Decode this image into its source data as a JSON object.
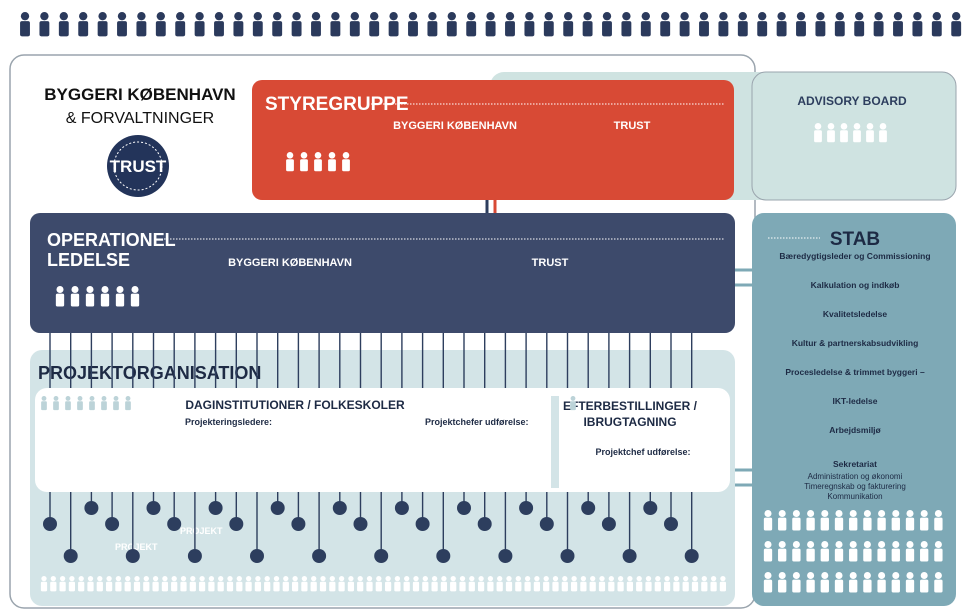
{
  "logo": {
    "line1": "BYGGERI KØBENHAVN",
    "line2": "& FORVALTNINGER",
    "badge": "TRUST"
  },
  "styregruppe": {
    "title": "STYREGRUPPE",
    "members": [
      "BYGGERI KØBENHAVN",
      "TRUST"
    ]
  },
  "advisory_board": {
    "title": "ADVISORY BOARD"
  },
  "operationel_ledelse": {
    "title": [
      "OPERATIONEL",
      "LEDELSE"
    ],
    "members": [
      "BYGGERI KØBENHAVN",
      "TRUST"
    ]
  },
  "stab": {
    "title": "STAB",
    "items": [
      "Bæredygtigsleder og Commissioning",
      "Kalkulation og indkøb",
      "Kvalitetsledelse",
      "Kultur & partnerskabsudvikling",
      "Procesledelse & trimmet byggeri –",
      "IKT-ledelse",
      "Arbejdsmiljø"
    ],
    "sekretariat": {
      "title": "Sekretariat",
      "items": [
        "Administration og økonomi",
        "Timeregnskab og fakturering",
        "Kommunikation"
      ]
    }
  },
  "projektorganisation": {
    "title": "PROJEKTORGANISATION",
    "daginstitutioner": {
      "title": "DAGINSTITUTIONER / FOLKESKOLER",
      "roles": [
        "Projekteringsledere:",
        "Projektchefer udførelse:"
      ]
    },
    "efterbestillinger": {
      "title": [
        "EFTERBESTILLINGER /",
        "IBRUGTAGNING"
      ],
      "roles": [
        "Projektchef udførelse:"
      ]
    },
    "project_labels": [
      "PROJEKT",
      "PROJEKT"
    ]
  }
}
